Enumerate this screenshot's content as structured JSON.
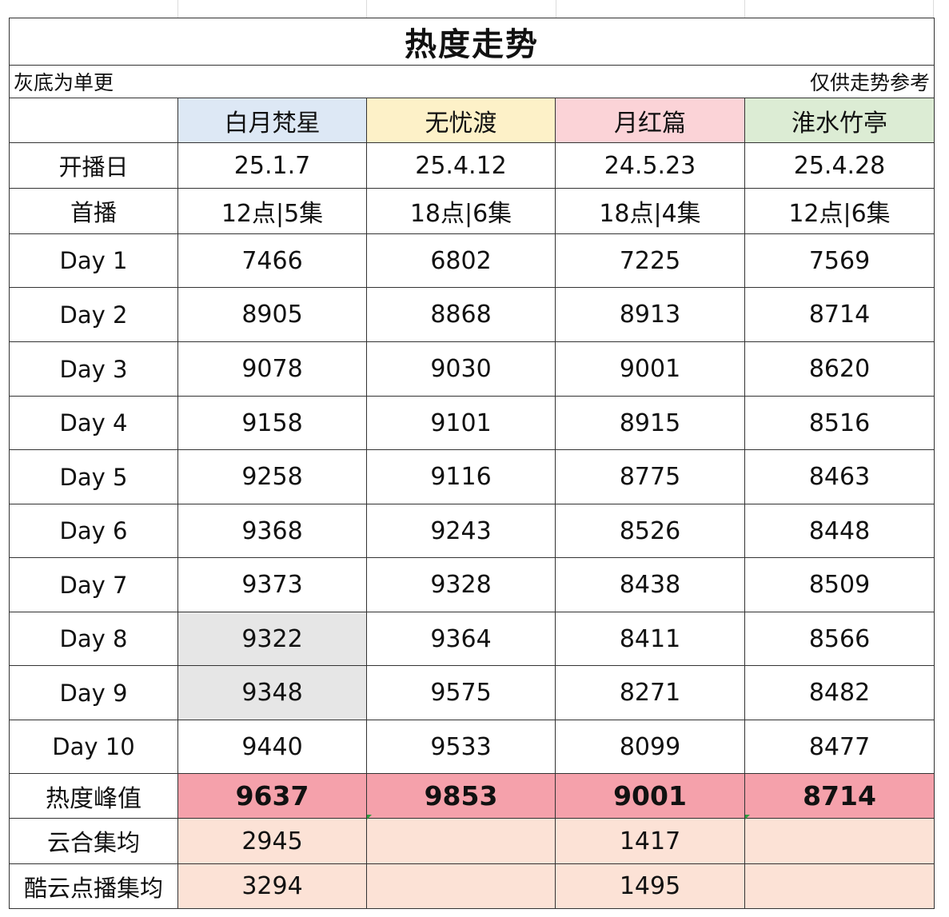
{
  "title": "热度走势",
  "note_left": "灰底为单更",
  "note_right": "仅供走势参考",
  "dramas": [
    "白月梵星",
    "无忧渡",
    "月红篇",
    "淮水竹亭"
  ],
  "info_rows": [
    {
      "label": "开播日",
      "values": [
        "25.1.7",
        "25.4.12",
        "24.5.23",
        "25.4.28"
      ]
    },
    {
      "label": "首播",
      "values": [
        "12点|5集",
        "18点|6集",
        "18点|4集",
        "12点|6集"
      ]
    }
  ],
  "day_rows": [
    {
      "label": "Day 1",
      "values": [
        "7466",
        "6802",
        "7225",
        "7569"
      ]
    },
    {
      "label": "Day 2",
      "values": [
        "8905",
        "8868",
        "8913",
        "8714"
      ]
    },
    {
      "label": "Day 3",
      "values": [
        "9078",
        "9030",
        "9001",
        "8620"
      ]
    },
    {
      "label": "Day 4",
      "values": [
        "9158",
        "9101",
        "8915",
        "8516"
      ]
    },
    {
      "label": "Day 5",
      "values": [
        "9258",
        "9116",
        "8775",
        "8463"
      ]
    },
    {
      "label": "Day 6",
      "values": [
        "9368",
        "9243",
        "8526",
        "8448"
      ]
    },
    {
      "label": "Day 7",
      "values": [
        "9373",
        "9328",
        "8438",
        "8509"
      ]
    },
    {
      "label": "Day 8",
      "values": [
        "9322",
        "9364",
        "8411",
        "8566"
      ]
    },
    {
      "label": "Day 9",
      "values": [
        "9348",
        "9575",
        "8271",
        "8482"
      ]
    },
    {
      "label": "Day 10",
      "values": [
        "9440",
        "9533",
        "8099",
        "8477"
      ]
    }
  ],
  "peak_row": {
    "label": "热度峰值",
    "values": [
      "9637",
      "9853",
      "9001",
      "8714"
    ]
  },
  "avg_rows": [
    {
      "label": "云合集均",
      "values": [
        "2945",
        "",
        "1417",
        ""
      ]
    },
    {
      "label": "酷云点播集均",
      "values": [
        "3294",
        "",
        "1495",
        ""
      ]
    }
  ],
  "colors": {
    "header_bg": [
      "#dde8f5",
      "#fdf1c8",
      "#fbd3d7",
      "#dcecd4"
    ],
    "single_update_gray": "#e6e6e6",
    "peak_bg": "#f5a1ab",
    "avg_bg": "#fce2d6"
  }
}
